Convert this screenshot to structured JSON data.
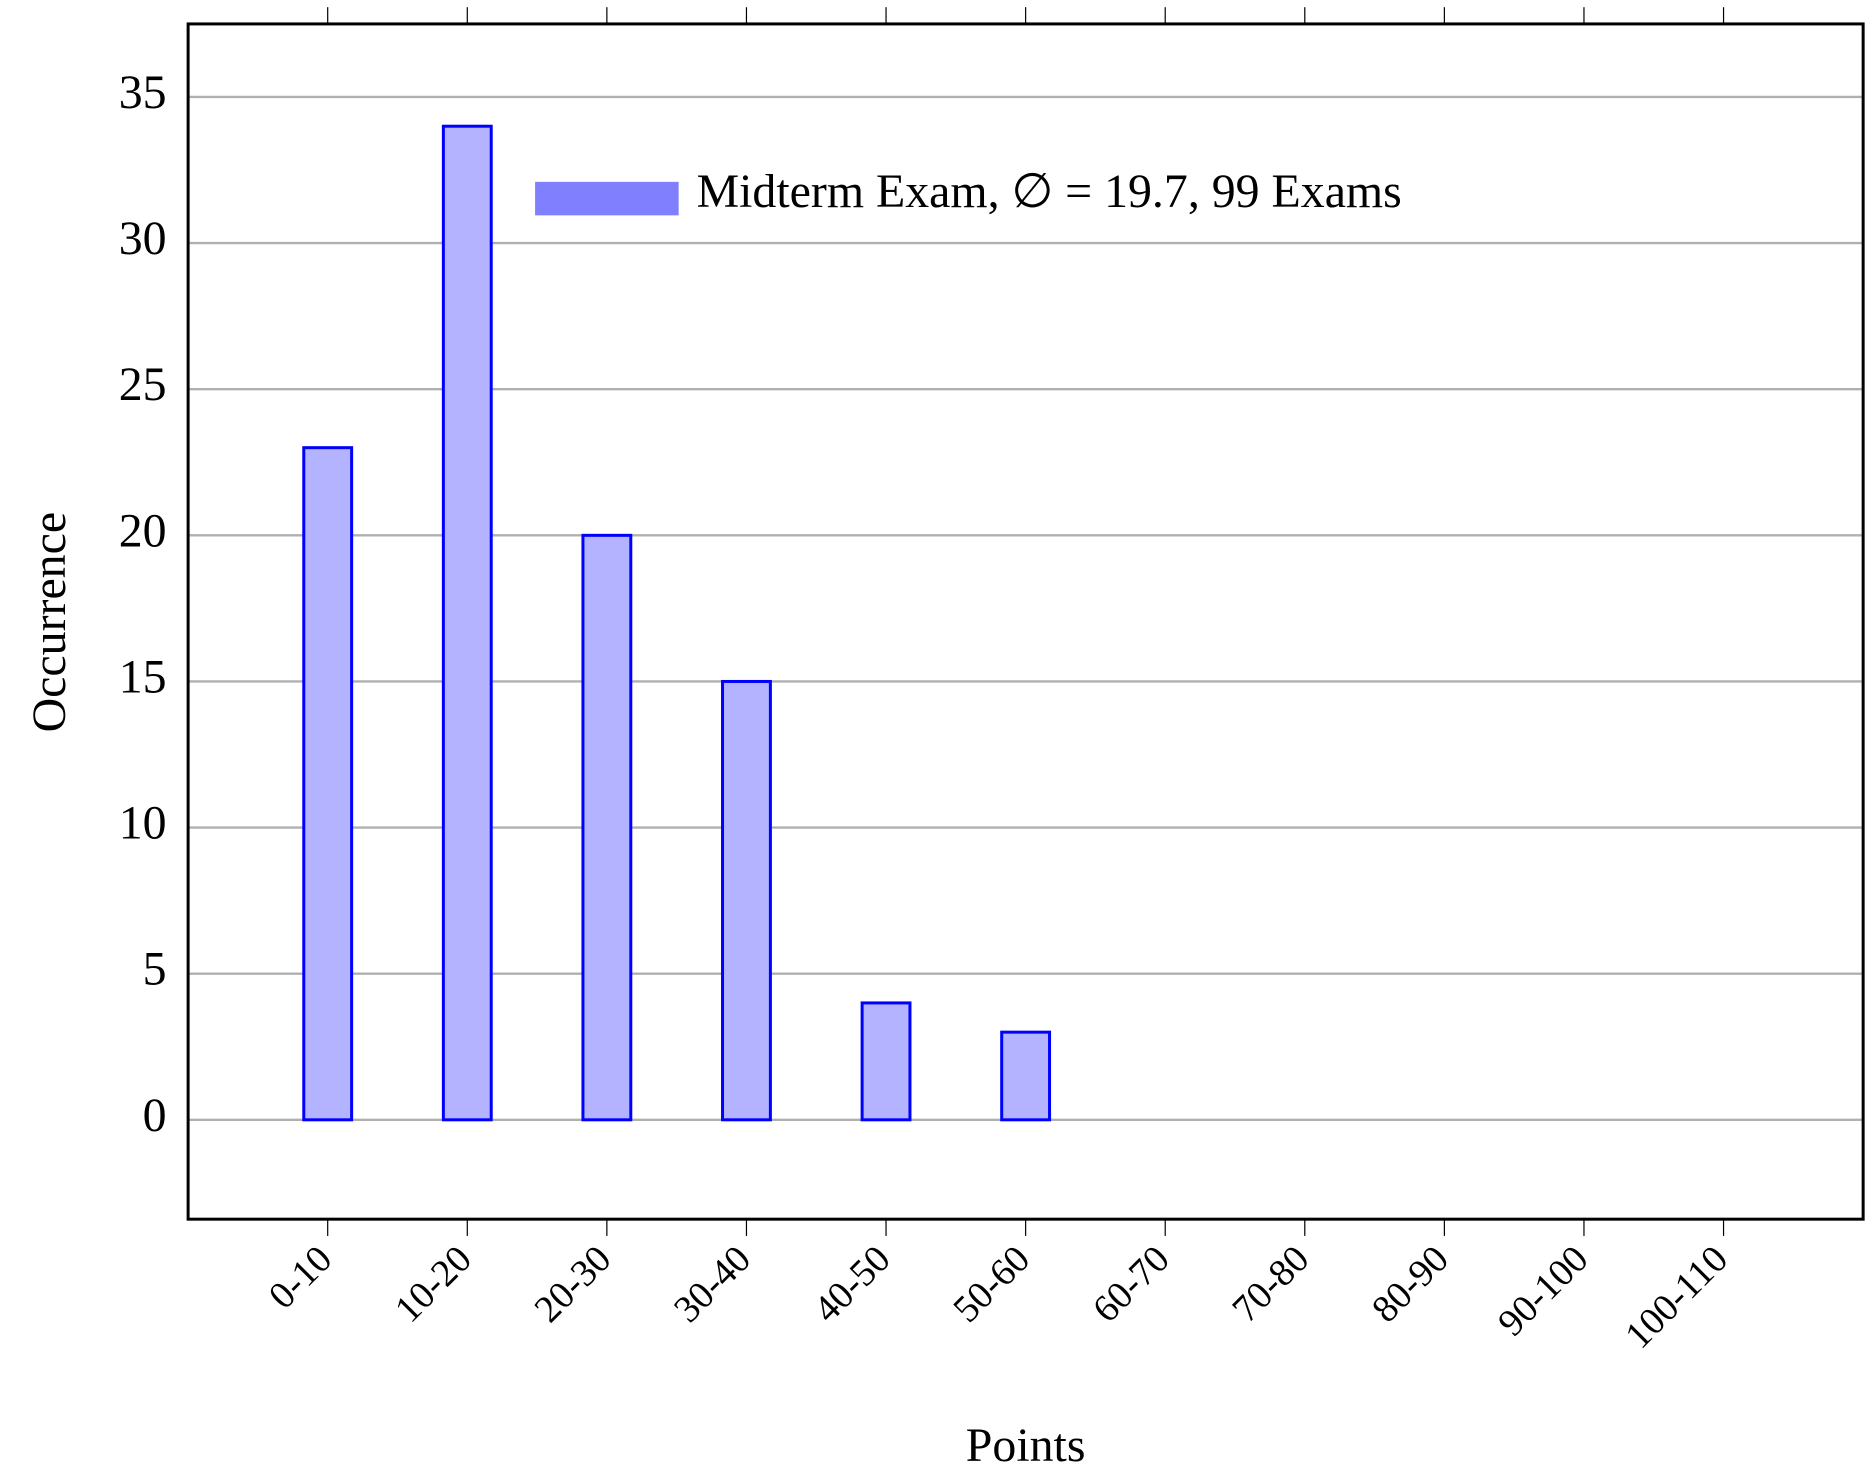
{
  "chart_data": {
    "type": "bar",
    "categories": [
      "0-10",
      "10-20",
      "20-30",
      "30-40",
      "40-50",
      "50-60",
      "60-70",
      "70-80",
      "80-90",
      "90-100",
      "100-110"
    ],
    "series": [
      {
        "name": "Midterm Exam, ∅ = 19.7, 99 Exams",
        "color": "#0000ff",
        "values": [
          23,
          34,
          20,
          15,
          4,
          3,
          0,
          0,
          0,
          0,
          0
        ]
      }
    ],
    "x_label": "Points",
    "y_label": "Occurrence",
    "ylim": [
      -3.4,
      37.5
    ],
    "yticks": [
      0,
      5,
      10,
      15,
      20,
      25,
      30,
      35
    ],
    "grid": true,
    "legend": "top"
  }
}
